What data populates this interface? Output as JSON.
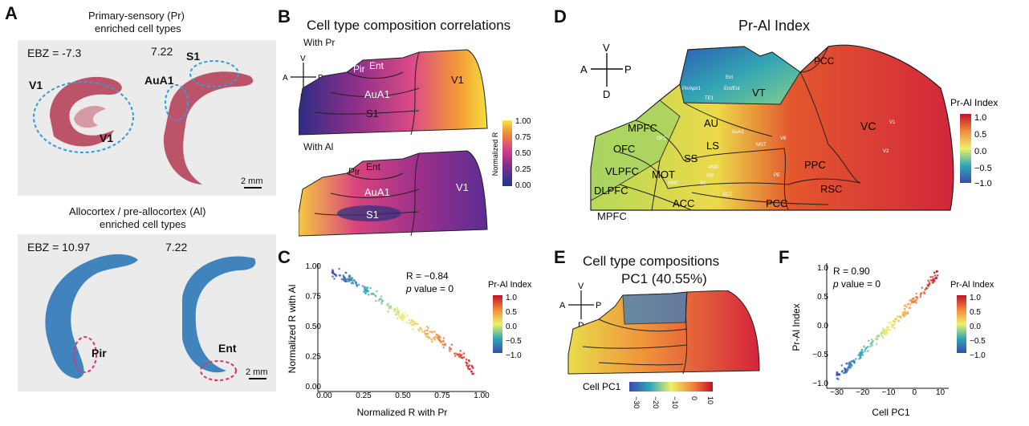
{
  "panelA": {
    "letter": "A",
    "top_title_1": "Primary-sensory (Pr)",
    "top_title_2": "enriched cell types",
    "top_ebz_left": "EBZ = -7.3",
    "top_ebz_right": "7.22",
    "top_labels": [
      "V1",
      "V1",
      "AuA1",
      "S1"
    ],
    "bottom_title_1": "Allocortex / pre-allocortex (Al)",
    "bottom_title_2": "enriched cell types",
    "bottom_ebz_left": "EBZ = 10.97",
    "bottom_ebz_right": "7.22",
    "bottom_labels": [
      "Pir",
      "Ent"
    ],
    "scale": "2 mm",
    "colors": {
      "pr": "#b43a52",
      "al": "#2f79b8",
      "bg": "#ebebeb"
    }
  },
  "panelB": {
    "letter": "B",
    "title": "Cell type composition correlations",
    "sub1": "With Pr",
    "sub2": "With Al",
    "regions_top": [
      "Pir",
      "Ent",
      "AuA1",
      "S1",
      "V1"
    ],
    "regions_bottom": [
      "Pir",
      "Ent",
      "AuA1",
      "S1",
      "V1"
    ],
    "compass": {
      "v": "V",
      "d": "D",
      "a": "A",
      "p": "P"
    },
    "colorbar_title": "Normalized R",
    "colorbar_ticks": [
      "1.00",
      "0.75",
      "0.50",
      "0.25",
      "0.00"
    ]
  },
  "panelC": {
    "letter": "C",
    "stats_r": "R = −0.84",
    "stats_p_italic": "p",
    "stats_p_rest": " value = 0",
    "legend_title": "Pr-Al Index",
    "legend_ticks": [
      "1.0",
      "0.5",
      "0.0",
      "−0.5",
      "−1.0"
    ]
  },
  "panelD": {
    "letter": "D",
    "title": "Pr-Al Index",
    "compass": {
      "v": "V",
      "d": "D",
      "a": "A",
      "p": "P"
    },
    "regions": [
      "PCC",
      "VT",
      "MPFC",
      "AU",
      "VC",
      "OFC",
      "LS",
      "VLPFC",
      "MOT",
      "SS",
      "PPC",
      "DLPFC",
      "ACC",
      "RSC",
      "PCC",
      "MPFC"
    ],
    "small_labels": [
      "Ent",
      "Pir/Apir1",
      "Ent/Ent",
      "TE1",
      "AuA1",
      "V1",
      "V2",
      "MST",
      "V6",
      "PE",
      "OFC",
      "AMD",
      "AIp",
      "SII",
      "PMC",
      "ACC"
    ],
    "legend_title": "Pr-Al Index",
    "legend_ticks": [
      "1.0",
      "0.5",
      "0.0",
      "−0.5",
      "−1.0"
    ]
  },
  "panelE": {
    "letter": "E",
    "title_1": "Cell type compositions",
    "title_2": "PC1 (40.55%)",
    "compass": {
      "v": "V",
      "d": "D",
      "a": "A",
      "p": "P"
    },
    "colorbar_title": "Cell PC1",
    "colorbar_ticks": [
      "−30",
      "−20",
      "−10",
      "0",
      "10"
    ]
  },
  "panelF": {
    "letter": "F",
    "stats_r": "R = 0.90",
    "stats_p_italic": "p",
    "stats_p_rest": " value = 0",
    "legend_title": "Pr-Al Index",
    "legend_ticks": [
      "1.0",
      "0.5",
      "0.0",
      "−0.5",
      "−1.0"
    ]
  },
  "chart_data": [
    {
      "type": "scatter",
      "panel": "C",
      "xlabel": "Normalized R with Pr",
      "ylabel": "Normalized R with Al",
      "xlim": [
        0,
        1
      ],
      "ylim": [
        0,
        1
      ],
      "xticks": [
        "0.00",
        "0.25",
        "0.50",
        "0.75",
        "1.00"
      ],
      "yticks": [
        "0.00",
        "0.25",
        "0.50",
        "0.75",
        "1.00"
      ],
      "colorscale": "Pr-Al Index",
      "trend": [
        [
          0.05,
          0.95
        ],
        [
          0.15,
          0.9
        ],
        [
          0.3,
          0.78
        ],
        [
          0.45,
          0.62
        ],
        [
          0.6,
          0.5
        ],
        [
          0.75,
          0.38
        ],
        [
          0.88,
          0.25
        ],
        [
          0.95,
          0.12
        ]
      ],
      "r": -0.84
    },
    {
      "type": "scatter",
      "panel": "F",
      "xlabel": "Cell PC1",
      "ylabel": "Pr-Al Index",
      "xlim": [
        -32,
        12
      ],
      "ylim": [
        -1,
        1
      ],
      "xticks": [
        "−30",
        "−20",
        "−10",
        "0",
        "10"
      ],
      "yticks": [
        "1.0",
        "0.5",
        "0.0",
        "−0.5",
        "−1.0"
      ],
      "colorscale": "Pr-Al Index",
      "trend": [
        [
          -30,
          -0.85
        ],
        [
          -25,
          -0.7
        ],
        [
          -20,
          -0.45
        ],
        [
          -15,
          -0.25
        ],
        [
          -10,
          -0.05
        ],
        [
          -5,
          0.2
        ],
        [
          0,
          0.45
        ],
        [
          5,
          0.7
        ],
        [
          9,
          0.9
        ]
      ],
      "r": 0.9
    }
  ]
}
